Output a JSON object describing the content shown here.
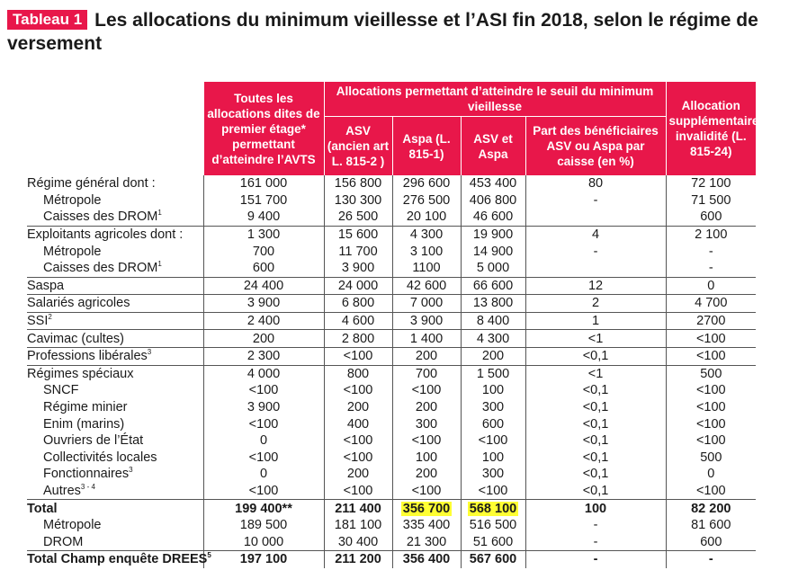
{
  "title": {
    "badge": "Tableau 1",
    "text": "Les allocations du minimum vieillesse et l’ASI fin 2018, selon le régime de versement"
  },
  "headers": {
    "all_first_stage": "Toutes les allocations dites de premier étage* permettant d’atteindre l’AVTS",
    "group_threshold": "Allocations permettant d’atteindre le seuil du minimum vieillesse",
    "asv": "ASV (ancien art L. 815-2 )",
    "aspa": "Aspa (L. 815-1)",
    "asv_aspa": "ASV et Aspa",
    "share": "Part des bénéficiaires ASV ou Aspa par caisse (en %)",
    "asi": "Allocation supplémentaire invalidité (L. 815-24)"
  },
  "rows": [
    {
      "label": "Régime général dont :",
      "sup": "",
      "sub": false,
      "group_start": true,
      "bold": false,
      "cells": [
        "161 000",
        "156 800",
        "296 600",
        "453 400",
        "80",
        "72 100"
      ]
    },
    {
      "label": "Métropole",
      "sup": "",
      "sub": true,
      "group_start": false,
      "bold": false,
      "cells": [
        "151 700",
        "130 300",
        "276 500",
        "406 800",
        "-",
        "71 500"
      ]
    },
    {
      "label": "Caisses des DROM",
      "sup": "1",
      "sub": true,
      "group_start": false,
      "bold": false,
      "cells": [
        "9 400",
        "26 500",
        "20 100",
        "46 600",
        "",
        "600"
      ]
    },
    {
      "label": "Exploitants agricoles dont :",
      "sup": "",
      "sub": false,
      "group_start": true,
      "bold": false,
      "cells": [
        "1 300",
        "15 600",
        "4 300",
        "19 900",
        "4",
        "2 100"
      ]
    },
    {
      "label": "Métropole",
      "sup": "",
      "sub": true,
      "group_start": false,
      "bold": false,
      "cells": [
        "700",
        "11 700",
        "3 100",
        "14 900",
        "-",
        "-"
      ]
    },
    {
      "label": "Caisses des DROM",
      "sup": "1",
      "sub": true,
      "group_start": false,
      "bold": false,
      "cells": [
        "600",
        "3 900",
        "1100",
        "5 000",
        "",
        "-"
      ]
    },
    {
      "label": "Saspa",
      "sup": "",
      "sub": false,
      "group_start": true,
      "bold": false,
      "cells": [
        "24 400",
        "24 000",
        "42 600",
        "66 600",
        "12",
        "0"
      ]
    },
    {
      "label": "Salariés agricoles",
      "sup": "",
      "sub": false,
      "group_start": true,
      "bold": false,
      "cells": [
        "3 900",
        "6 800",
        "7 000",
        "13 800",
        "2",
        "4 700"
      ]
    },
    {
      "label": "SSI",
      "sup": "2",
      "sub": false,
      "group_start": true,
      "bold": false,
      "cells": [
        "2 400",
        "4 600",
        "3 900",
        "8 400",
        "1",
        "2700"
      ]
    },
    {
      "label": "Cavimac (cultes)",
      "sup": "",
      "sub": false,
      "group_start": true,
      "bold": false,
      "cells": [
        "200",
        "2 800",
        "1 400",
        "4 300",
        "<1",
        "<100"
      ]
    },
    {
      "label": "Professions libérales",
      "sup": "3",
      "sub": false,
      "group_start": true,
      "bold": false,
      "cells": [
        "2 300",
        "<100",
        "200",
        "200",
        "<0,1",
        "<100"
      ]
    },
    {
      "label": "Régimes spéciaux",
      "sup": "",
      "sub": false,
      "group_start": true,
      "bold": false,
      "cells": [
        "4 000",
        "800",
        "700",
        "1 500",
        "<1",
        "500"
      ]
    },
    {
      "label": "SNCF",
      "sup": "",
      "sub": true,
      "group_start": false,
      "bold": false,
      "cells": [
        "<100",
        "<100",
        "<100",
        "100",
        "<0,1",
        "<100"
      ]
    },
    {
      "label": "Régime minier",
      "sup": "",
      "sub": true,
      "group_start": false,
      "bold": false,
      "cells": [
        "3 900",
        "200",
        "200",
        "300",
        "<0,1",
        "<100"
      ]
    },
    {
      "label": "Enim (marins)",
      "sup": "",
      "sub": true,
      "group_start": false,
      "bold": false,
      "cells": [
        "<100",
        "400",
        "300",
        "600",
        "<0,1",
        "<100"
      ]
    },
    {
      "label": "Ouvriers de l’État",
      "sup": "",
      "sub": true,
      "group_start": false,
      "bold": false,
      "cells": [
        "0",
        "<100",
        "<100",
        "<100",
        "<0,1",
        "<100"
      ]
    },
    {
      "label": "Collectivités locales",
      "sup": "",
      "sub": true,
      "group_start": false,
      "bold": false,
      "cells": [
        "<100",
        "<100",
        "100",
        "100",
        "<0,1",
        "500"
      ]
    },
    {
      "label": "Fonctionnaires",
      "sup": "3",
      "sub": true,
      "group_start": false,
      "bold": false,
      "cells": [
        "0",
        "200",
        "200",
        "300",
        "<0,1",
        "0"
      ]
    },
    {
      "label": "Autres",
      "sup": "3 - 4",
      "sub": true,
      "group_start": false,
      "bold": false,
      "cells": [
        "<100",
        "<100",
        "<100",
        "<100",
        "<0,1",
        "<100"
      ]
    },
    {
      "label": "Total",
      "sup": "",
      "sub": false,
      "group_start": true,
      "bold": true,
      "cells": [
        "199 400**",
        "211 400",
        "356 700",
        "568 100",
        "100",
        "82 200"
      ]
    },
    {
      "label": "Métropole",
      "sup": "",
      "sub": true,
      "group_start": false,
      "bold": false,
      "cells": [
        "189 500",
        "181 100",
        "335 400",
        "516 500",
        "-",
        "81 600"
      ]
    },
    {
      "label": "DROM",
      "sup": "",
      "sub": true,
      "group_start": false,
      "bold": false,
      "cells": [
        "10 000",
        "30 400",
        "21 300",
        "51 600",
        "-",
        "600"
      ]
    },
    {
      "label": "Total Champ enquête DREES",
      "sup": "5",
      "sub": false,
      "group_start": true,
      "bold": true,
      "cells": [
        "197 100",
        "211 200",
        "356 400",
        "567 600",
        "-",
        "-"
      ]
    }
  ],
  "highlight": {
    "row": 19,
    "cols": [
      2,
      3
    ],
    "color": "#ffff33"
  },
  "colors": {
    "accent": "#e8174a",
    "highlight": "#ffff33"
  }
}
